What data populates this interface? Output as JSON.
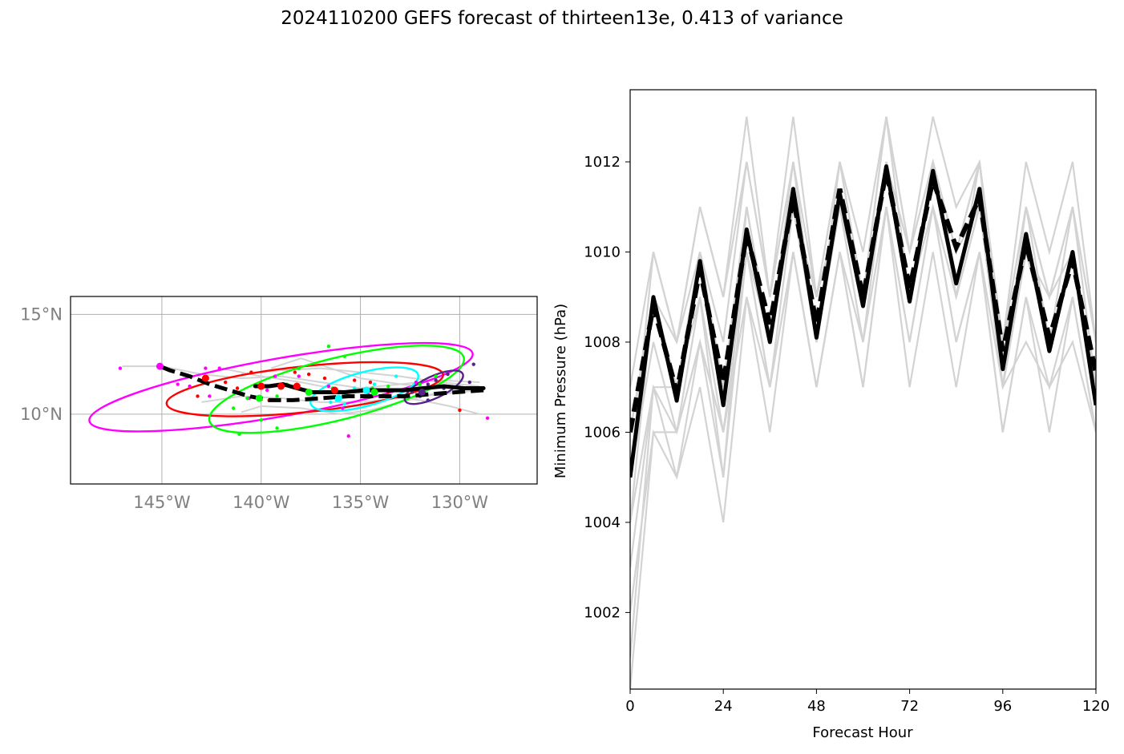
{
  "title": "2024110200 GEFS forecast of thirteen13e, 0.413 of variance",
  "chart_data": [
    {
      "type": "map",
      "x_ticks": [
        {
          "lon": -145,
          "label": "145°W"
        },
        {
          "lon": -140,
          "label": "140°W"
        },
        {
          "lon": -135,
          "label": "135°W"
        },
        {
          "lon": -130,
          "label": "130°W"
        }
      ],
      "y_ticks": [
        {
          "lat": 10,
          "label": "10°N"
        },
        {
          "lat": 15,
          "label": "15°N"
        }
      ],
      "xlim": [
        -149.6,
        -126.1
      ],
      "ylim": [
        6.5,
        15.9
      ],
      "grid": true,
      "colors": {
        "axis": "#000000",
        "tick_text": "#808080",
        "grid": "#b0b0b0",
        "member": "#d3d3d3",
        "mean": "#000000"
      },
      "ensemble_mean_solid": [
        [
          -128.8,
          11.3
        ],
        [
          -129.8,
          11.3
        ],
        [
          -130.8,
          11.4
        ],
        [
          -131.8,
          11.3
        ],
        [
          -132.8,
          11.2
        ],
        [
          -133.8,
          11.2
        ],
        [
          -134.8,
          11.2
        ],
        [
          -135.8,
          11.1
        ],
        [
          -136.6,
          11.1
        ],
        [
          -137.4,
          11.1
        ],
        [
          -138.2,
          11.3
        ],
        [
          -138.9,
          11.5
        ],
        [
          -139.6,
          11.4
        ],
        [
          -140.3,
          11.4
        ]
      ],
      "ensemble_mean_dashed": [
        [
          -128.8,
          11.2
        ],
        [
          -130.2,
          11.1
        ],
        [
          -131.5,
          11.0
        ],
        [
          -132.8,
          10.9
        ],
        [
          -134.2,
          10.9
        ],
        [
          -135.6,
          10.9
        ],
        [
          -137.0,
          10.8
        ],
        [
          -138.4,
          10.7
        ],
        [
          -139.6,
          10.7
        ],
        [
          -140.6,
          10.9
        ],
        [
          -141.6,
          11.2
        ],
        [
          -142.6,
          11.5
        ],
        [
          -143.6,
          11.9
        ],
        [
          -144.6,
          12.2
        ],
        [
          -145.1,
          12.4
        ]
      ],
      "member_tracks": [
        [
          [
            -129,
            11.6
          ],
          [
            -131,
            11.7
          ],
          [
            -133,
            11.5
          ],
          [
            -135,
            11.3
          ],
          [
            -137,
            11.6
          ],
          [
            -139,
            11.9
          ],
          [
            -141,
            11.8
          ],
          [
            -143,
            12.0
          ],
          [
            -145,
            12.4
          ],
          [
            -147,
            12.4
          ]
        ],
        [
          [
            -129,
            11.2
          ],
          [
            -131,
            11.0
          ],
          [
            -133,
            10.8
          ],
          [
            -135,
            10.6
          ],
          [
            -137,
            10.6
          ],
          [
            -139,
            10.8
          ],
          [
            -141,
            10.9
          ],
          [
            -143,
            10.6
          ]
        ],
        [
          [
            -129,
            10.0
          ],
          [
            -130.5,
            10.4
          ],
          [
            -132,
            10.7
          ],
          [
            -134,
            10.9
          ],
          [
            -136,
            11.2
          ],
          [
            -138,
            11.6
          ],
          [
            -140,
            11.9
          ],
          [
            -142,
            12.3
          ]
        ],
        [
          [
            -129,
            11.4
          ],
          [
            -131,
            11.6
          ],
          [
            -133,
            11.9
          ],
          [
            -135,
            12.1
          ],
          [
            -137,
            12.3
          ],
          [
            -139,
            12.2
          ],
          [
            -141,
            12.0
          ]
        ],
        [
          [
            -129,
            11.3
          ],
          [
            -131,
            11.3
          ],
          [
            -133,
            11.5
          ],
          [
            -135,
            11.8
          ],
          [
            -136.5,
            12.3
          ],
          [
            -138,
            12.8
          ],
          [
            -139.5,
            12.3
          ]
        ],
        [
          [
            -129,
            11.2
          ],
          [
            -131,
            11.1
          ],
          [
            -133,
            10.6
          ],
          [
            -134.5,
            10.2
          ],
          [
            -136,
            10.0
          ],
          [
            -138,
            10.3
          ],
          [
            -140,
            10.4
          ],
          [
            -141,
            10.1
          ]
        ]
      ],
      "clusters": [
        {
          "color": "#ff00ff",
          "ellipse": {
            "cx": -139.0,
            "cy": 11.35,
            "rx": 9.8,
            "ry": 1.45,
            "angle_deg": -10
          },
          "mean_points": [
            [
              -145.1,
              12.4
            ],
            [
              -140.0,
              11.4
            ]
          ],
          "points": [
            [
              -147.1,
              12.3
            ],
            [
              -144.2,
              11.5
            ],
            [
              -143.6,
              11.4
            ],
            [
              -142.8,
              12.3
            ],
            [
              -142.1,
              12.3
            ],
            [
              -142.6,
              10.9
            ],
            [
              -140.6,
              10.8
            ],
            [
              -139.7,
              11.2
            ],
            [
              -139.3,
              11.9
            ],
            [
              -138.1,
              11.9
            ],
            [
              -136.6,
              11.4
            ],
            [
              -135.9,
              10.3
            ],
            [
              -135.6,
              8.9
            ],
            [
              -134.6,
              11.0
            ],
            [
              -132.2,
              11.6
            ],
            [
              -128.6,
              9.8
            ]
          ]
        },
        {
          "color": "#ff0000",
          "ellipse": {
            "cx": -137.8,
            "cy": 11.25,
            "rx": 7.0,
            "ry": 1.15,
            "angle_deg": -6
          },
          "mean_points": [
            [
              -142.8,
              11.8
            ],
            [
              -140.0,
              11.4
            ],
            [
              -139.0,
              11.4
            ],
            [
              -138.2,
              11.4
            ],
            [
              -136.3,
              11.2
            ]
          ],
          "points": [
            [
              -143.2,
              10.9
            ],
            [
              -141.8,
              11.6
            ],
            [
              -141.2,
              11.3
            ],
            [
              -140.5,
              12.1
            ],
            [
              -139.6,
              10.7
            ],
            [
              -138.3,
              12.1
            ],
            [
              -137.6,
              12.0
            ],
            [
              -136.8,
              11.8
            ],
            [
              -135.3,
              11.7
            ],
            [
              -134.5,
              11.6
            ],
            [
              -133.6,
              11.1
            ],
            [
              -130.0,
              10.2
            ]
          ]
        },
        {
          "color": "#00ff00",
          "ellipse": {
            "cx": -136.2,
            "cy": 11.25,
            "rx": 6.6,
            "ry": 1.55,
            "angle_deg": -14
          },
          "mean_points": [
            [
              -140.1,
              10.8
            ],
            [
              -137.6,
              11.1
            ],
            [
              -134.3,
              11.1
            ]
          ],
          "points": [
            [
              -141.4,
              10.3
            ],
            [
              -140.7,
              10.8
            ],
            [
              -140.0,
              9.7
            ],
            [
              -139.2,
              10.9
            ],
            [
              -138.7,
              11.5
            ],
            [
              -138.1,
              12.3
            ],
            [
              -136.6,
              13.4
            ],
            [
              -136.4,
              11.3
            ],
            [
              -135.8,
              12.9
            ],
            [
              -134.4,
              11.3
            ],
            [
              -133.6,
              11.4
            ],
            [
              -132.0,
              11.5
            ],
            [
              -131.2,
              11.9
            ],
            [
              -139.2,
              9.3
            ],
            [
              -141.1,
              9.0
            ]
          ]
        },
        {
          "color": "#00ffff",
          "ellipse": {
            "cx": -134.8,
            "cy": 11.25,
            "rx": 2.8,
            "ry": 0.85,
            "angle_deg": -15
          },
          "mean_points": [
            [
              -136.1,
              10.8
            ],
            [
              -134.7,
              11.2
            ]
          ],
          "points": [
            [
              -136.5,
              10.6
            ],
            [
              -136.2,
              10.7
            ],
            [
              -135.7,
              11.0
            ],
            [
              -135.3,
              11.3
            ],
            [
              -134.3,
              11.5
            ],
            [
              -133.2,
              11.9
            ],
            [
              -133.6,
              10.9
            ],
            [
              -135.8,
              10.5
            ],
            [
              -134.9,
              10.9
            ]
          ]
        },
        {
          "color": "#552288",
          "ellipse": {
            "cx": -131.3,
            "cy": 11.35,
            "rx": 1.6,
            "ry": 0.55,
            "angle_deg": -25
          },
          "mean_points": [
            [
              -131.9,
              11.1
            ]
          ],
          "points": [
            [
              -132.4,
              11.1
            ],
            [
              -131.6,
              11.5
            ],
            [
              -131.2,
              11.7
            ],
            [
              -130.8,
              11.3
            ],
            [
              -131.6,
              10.7
            ],
            [
              -129.5,
              11.6
            ],
            [
              -129.3,
              12.5
            ],
            [
              -132.0,
              10.9
            ],
            [
              -130.6,
              12.0
            ]
          ]
        }
      ]
    },
    {
      "type": "line",
      "xlabel": "Forecast Hour",
      "ylabel": "Minimum Pressure (hPa)",
      "x_ticks": [
        0,
        24,
        48,
        72,
        96,
        120
      ],
      "y_ticks": [
        1002,
        1004,
        1006,
        1008,
        1010,
        1012
      ],
      "xlim": [
        0,
        120
      ],
      "ylim": [
        1000.3,
        1013.6
      ],
      "x": [
        0,
        6,
        12,
        18,
        24,
        30,
        36,
        42,
        48,
        54,
        60,
        66,
        72,
        78,
        84,
        90,
        96,
        102,
        108,
        114,
        120
      ],
      "colors": {
        "member": "#d3d3d3",
        "mean": "#000000"
      },
      "member_series": [
        [
          1005,
          1010,
          1008,
          1011,
          1009,
          1013,
          1009,
          1013,
          1009,
          1012,
          1010,
          1013,
          1010,
          1013,
          1011,
          1012,
          1008,
          1012,
          1010,
          1012,
          1008
        ],
        [
          1004,
          1009,
          1007,
          1010,
          1008,
          1012,
          1009,
          1012,
          1008,
          1012,
          1009,
          1013,
          1009,
          1012,
          1010,
          1012,
          1008,
          1011,
          1009,
          1011,
          1007
        ],
        [
          1007,
          1010,
          1008,
          1011,
          1009,
          1012,
          1009,
          1012,
          1009,
          1011,
          1009,
          1013,
          1010,
          1012,
          1010,
          1012,
          1008,
          1011,
          1009,
          1011,
          1008
        ],
        [
          1006,
          1009,
          1007,
          1010,
          1007,
          1011,
          1008,
          1011,
          1008,
          1011,
          1009,
          1012,
          1009,
          1012,
          1009,
          1011,
          1007,
          1010,
          1008,
          1010,
          1007
        ],
        [
          1005,
          1008,
          1006,
          1009,
          1006,
          1010,
          1007,
          1011,
          1008,
          1011,
          1008,
          1012,
          1009,
          1011,
          1009,
          1011,
          1007,
          1010,
          1008,
          1010,
          1007
        ],
        [
          1004,
          1007,
          1005,
          1008,
          1005,
          1010,
          1007,
          1010,
          1007,
          1010,
          1008,
          1011,
          1008,
          1011,
          1008,
          1010,
          1006,
          1009,
          1007,
          1009,
          1006
        ],
        [
          1003,
          1007,
          1006,
          1008,
          1006,
          1009,
          1007,
          1010,
          1007,
          1010,
          1007,
          1011,
          1008,
          1011,
          1008,
          1010,
          1006,
          1009,
          1006,
          1009,
          1006
        ],
        [
          1002,
          1006,
          1005,
          1007,
          1004,
          1009,
          1006,
          1010,
          1007,
          1010,
          1007,
          1011,
          1007,
          1010,
          1007,
          1010,
          1007,
          1008,
          1007,
          1008,
          1006
        ],
        [
          1001,
          1007,
          1007,
          1009,
          1005,
          1011,
          1008,
          1011,
          1009,
          1012,
          1009,
          1012,
          1009,
          1012,
          1009,
          1012,
          1007,
          1011,
          1008,
          1011,
          1008
        ],
        [
          1006,
          1009,
          1008,
          1010,
          1007,
          1011,
          1008,
          1012,
          1008,
          1011,
          1008,
          1012,
          1010,
          1012,
          1010,
          1011,
          1007,
          1010,
          1008,
          1010,
          1007
        ],
        [
          1000.3,
          1006,
          1006,
          1008,
          1006,
          1010,
          1008,
          1011,
          1008,
          1011,
          1009,
          1012,
          1009,
          1012,
          1009,
          1011,
          1008,
          1010,
          1009,
          1010,
          1007
        ]
      ],
      "mean_dashed": [
        1006.0,
        1008.8,
        1006.9,
        1009.6,
        1007.1,
        1010.4,
        1008.4,
        1011.2,
        1008.4,
        1011.4,
        1009.0,
        1011.8,
        1009.2,
        1011.6,
        1010.1,
        1011.2,
        1007.8,
        1010.2,
        1008.1,
        1009.8,
        1007.3
      ],
      "mean_solid": [
        1005.0,
        1009.0,
        1006.7,
        1009.8,
        1006.6,
        1010.5,
        1008.0,
        1011.4,
        1008.1,
        1011.3,
        1008.8,
        1011.9,
        1008.9,
        1011.8,
        1009.3,
        1011.4,
        1007.4,
        1010.4,
        1007.8,
        1010.0,
        1006.6
      ]
    }
  ]
}
